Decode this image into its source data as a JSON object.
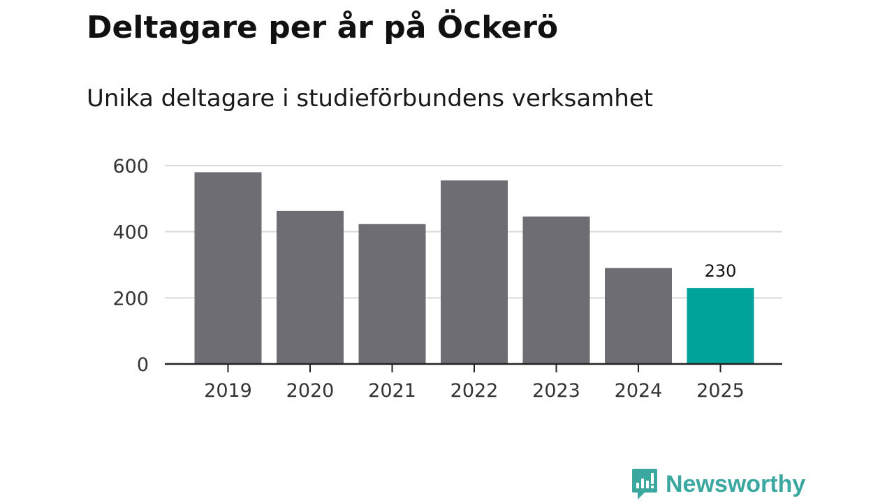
{
  "header": {
    "title": "Deltagare per år på Öckerö",
    "subtitle": "Unika deltagare i studieförbundens verksamhet"
  },
  "chart_data": {
    "type": "bar",
    "title": "Deltagare per år på Öckerö",
    "subtitle": "Unika deltagare i studieförbundens verksamhet",
    "categories": [
      "2019",
      "2020",
      "2021",
      "2022",
      "2023",
      "2024",
      "2025"
    ],
    "values": [
      580,
      463,
      423,
      555,
      446,
      290,
      230
    ],
    "ylim": [
      0,
      600
    ],
    "yticks": [
      "0",
      "200",
      "400",
      "600"
    ],
    "grid": "horizontal",
    "annotations": [
      {
        "category": "2025",
        "label": "230"
      }
    ],
    "colors": {
      "default": "#6e6d73",
      "highlight": "#00a39a",
      "grid": "#d9d9d9",
      "axis": "#222222"
    }
  },
  "brand": {
    "name": "Newsworthy",
    "icon": "newsworthy-logo-icon",
    "color": "#3ba8a0"
  }
}
